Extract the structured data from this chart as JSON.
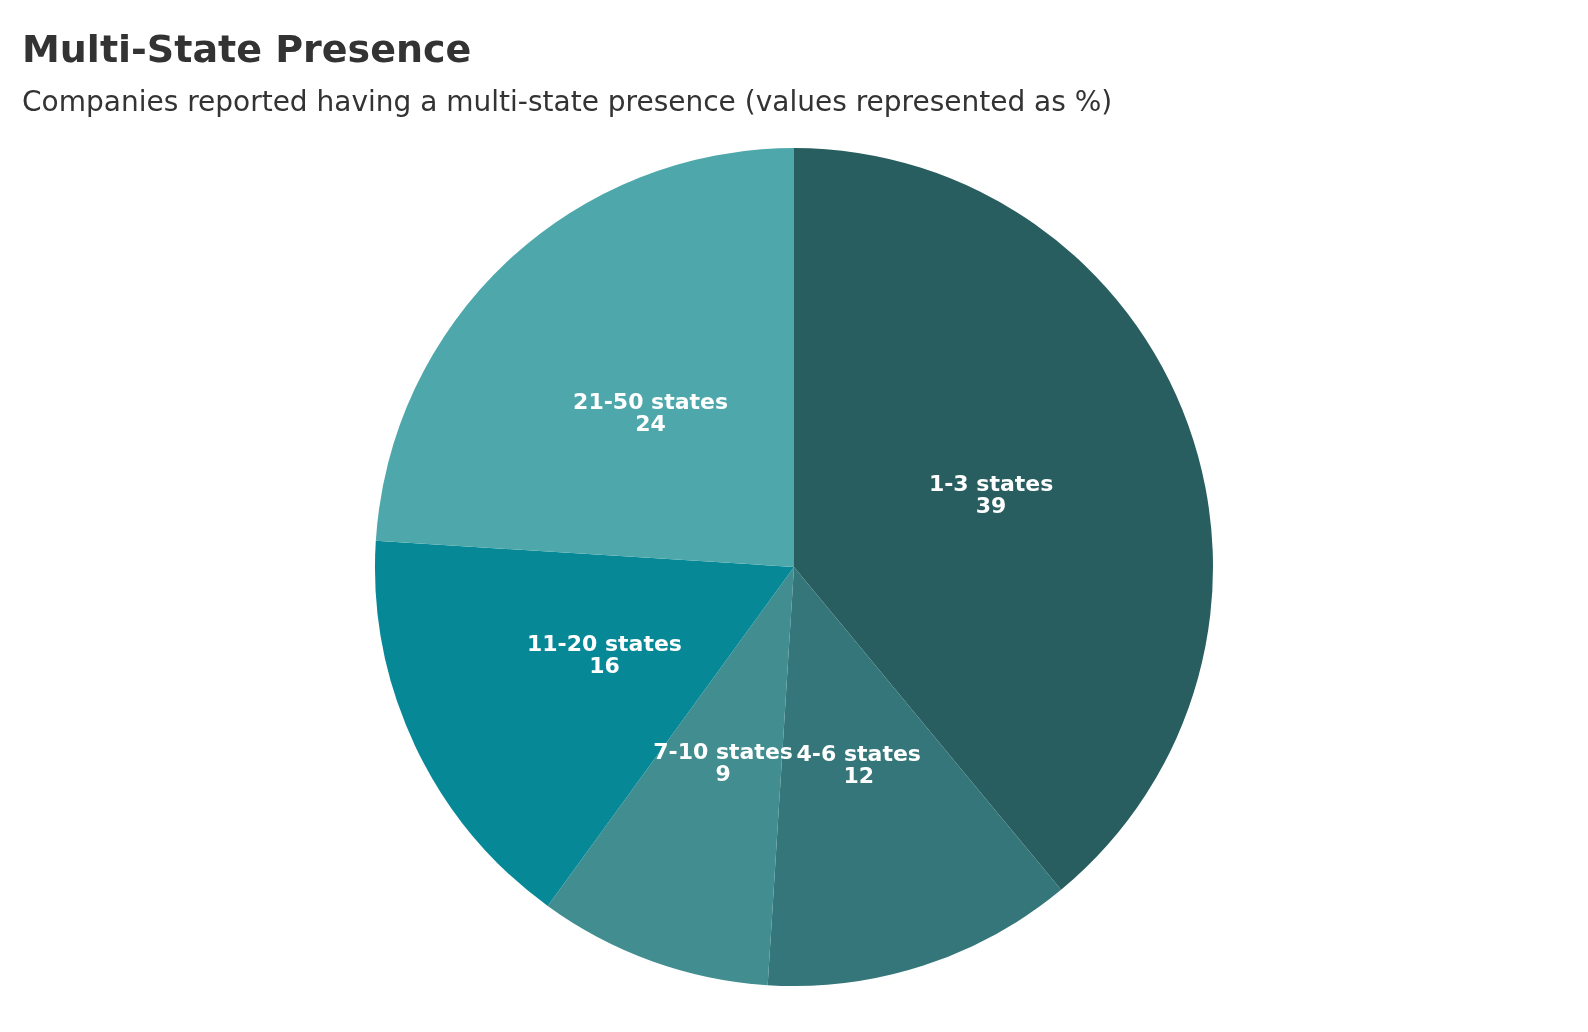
{
  "chart_data": {
    "type": "pie",
    "title": "Multi-State Presence",
    "subtitle": "Companies reported having a multi-state presence (values represented as %)",
    "categories": [
      "1-3 states",
      "4-6 states",
      "7-10 states",
      "11-20 states",
      "21-50 states"
    ],
    "values": [
      39,
      12,
      9,
      16,
      24
    ],
    "colors": [
      "#285e5f",
      "#347679",
      "#418d90",
      "#068896",
      "#4ea8ab"
    ],
    "data_labels": true,
    "legend": false
  }
}
